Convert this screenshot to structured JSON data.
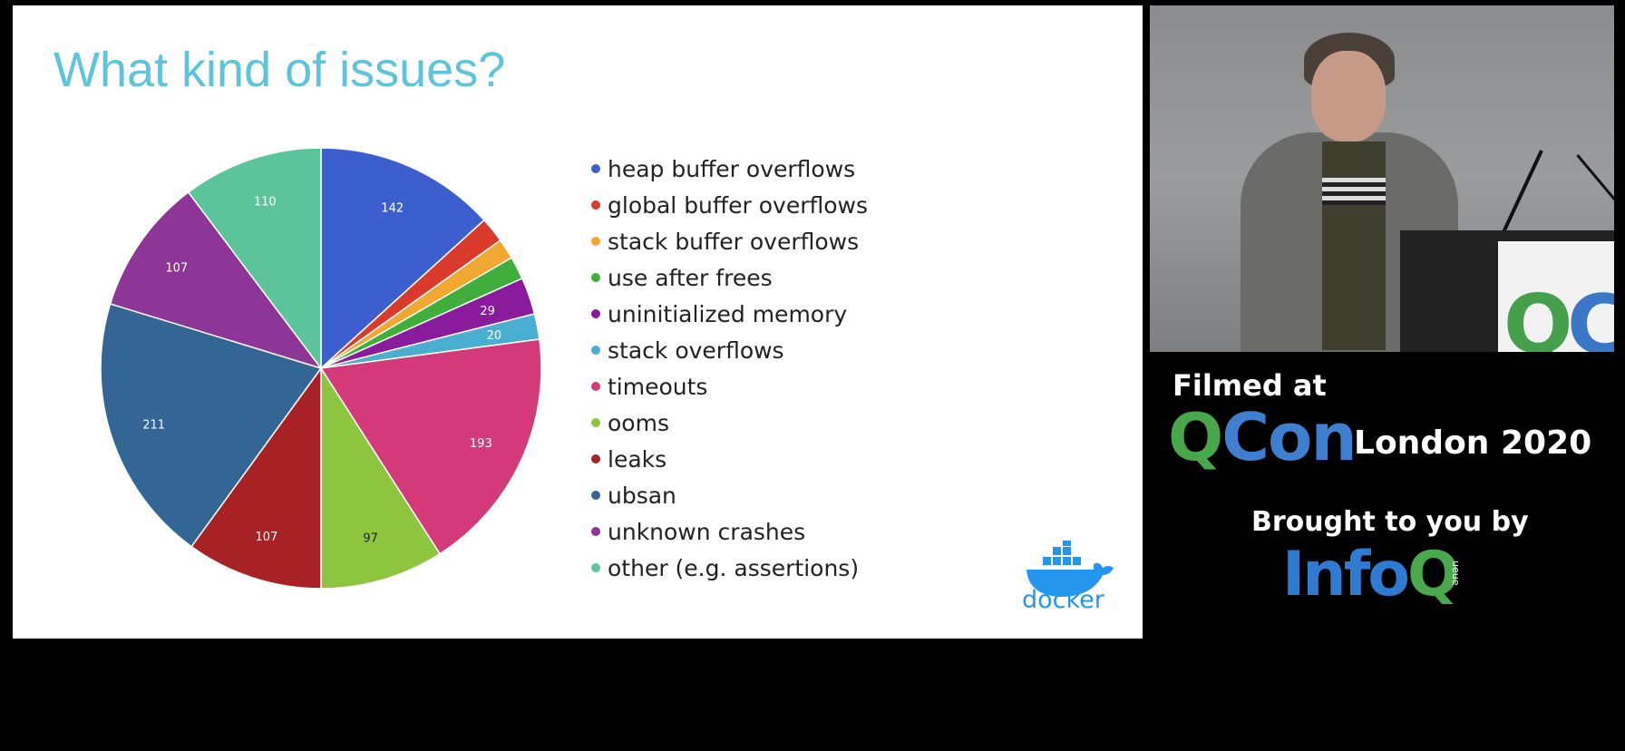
{
  "slide": {
    "title": "What kind of issues?",
    "logo_text": "docker"
  },
  "chart_data": {
    "type": "pie",
    "title": "What kind of issues?",
    "legend_position": "right",
    "slices": [
      {
        "label": "heap buffer overflows",
        "value": 142,
        "color": "#3b5fce",
        "show_label": true
      },
      {
        "label": "global buffer overflows",
        "value": 20,
        "color": "#d93a2b",
        "show_label": false
      },
      {
        "label": "stack buffer overflows",
        "value": 16,
        "color": "#f0a830",
        "show_label": false
      },
      {
        "label": "use after frees",
        "value": 18,
        "color": "#3fae3d",
        "show_label": false
      },
      {
        "label": "uninitialized memory",
        "value": 29,
        "color": "#8a1b9c",
        "show_label": true
      },
      {
        "label": "stack overflows",
        "value": 20,
        "color": "#4aaed0",
        "show_label": true
      },
      {
        "label": "timeouts",
        "value": 193,
        "color": "#d43a7a",
        "show_label": true
      },
      {
        "label": "ooms",
        "value": 97,
        "color": "#8dc53e",
        "show_label": true
      },
      {
        "label": "leaks",
        "value": 107,
        "color": "#a82125",
        "show_label": true
      },
      {
        "label": "ubsan",
        "value": 211,
        "color": "#346695",
        "show_label": true
      },
      {
        "label": "unknown crashes",
        "value": 107,
        "color": "#8e3598",
        "show_label": true
      },
      {
        "label": "other (e.g. assertions)",
        "value": 110,
        "color": "#5cc49a",
        "show_label": true
      }
    ]
  },
  "branding": {
    "filmed_at": "Filmed at",
    "qcon_q": "Q",
    "qcon_con": "Con",
    "london": "London 2020",
    "brought_by": "Brought to you by",
    "infoq_info": "Info",
    "infoq_q": "Q",
    "infoq_sub": "ueue"
  },
  "video": {
    "podium_q": "Q",
    "podium_c": "C"
  }
}
